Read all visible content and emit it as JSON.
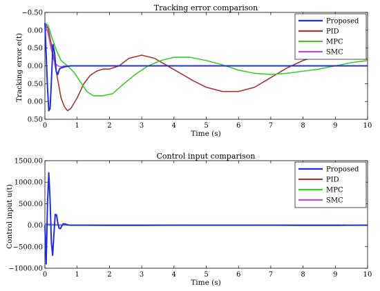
{
  "chart_data": [
    {
      "type": "line",
      "title": "Tracking error comparison",
      "xlabel": "Time (s)",
      "ylabel": "Tracking error e(t)",
      "xlim": [
        0,
        10
      ],
      "ylim": [
        -0.5,
        0.5
      ],
      "xticks": [
        "0",
        "1",
        "2",
        "3",
        "4",
        "5",
        "6",
        "7",
        "8",
        "9",
        "10"
      ],
      "yticks": [
        "−0.50",
        "0.00",
        "0.50",
        "0.00",
        "0.50",
        "0.00",
        "0.50"
      ],
      "legend_position": "top-right",
      "series": [
        {
          "name": "Proposed",
          "color": "#1f2fd8",
          "x": [
            0,
            0.04,
            0.08,
            0.12,
            0.16,
            0.2,
            0.25,
            0.3,
            0.35,
            0.4,
            0.45,
            0.5,
            0.6,
            0.8,
            1.2,
            2,
            4,
            6,
            8,
            10
          ],
          "y": [
            -0.4,
            -0.1,
            0.2,
            0.42,
            0.4,
            0.15,
            -0.2,
            -0.12,
            0.05,
            0.08,
            0.03,
            0.02,
            0.01,
            0.0,
            0.0,
            0.0,
            0.0,
            0.0,
            0.0,
            0.0
          ]
        },
        {
          "name": "PID",
          "color": "#a83232",
          "x": [
            0,
            0.1,
            0.2,
            0.35,
            0.5,
            0.6,
            0.7,
            0.8,
            1.0,
            1.2,
            1.4,
            1.6,
            1.8,
            2.0,
            2.3,
            2.6,
            3.0,
            3.4,
            3.8,
            4.2,
            4.6,
            5.0,
            5.5,
            6.0,
            6.5,
            7.0,
            7.5,
            8.0,
            8.5,
            9.0,
            9.5,
            10
          ],
          "y": [
            -0.4,
            -0.35,
            -0.2,
            0.05,
            0.3,
            0.38,
            0.42,
            0.4,
            0.3,
            0.17,
            0.09,
            0.05,
            0.03,
            0.03,
            0.0,
            -0.07,
            -0.1,
            -0.07,
            0.0,
            0.07,
            0.14,
            0.2,
            0.24,
            0.24,
            0.2,
            0.11,
            0.02,
            -0.05,
            -0.1,
            -0.12,
            -0.11,
            -0.06
          ]
        },
        {
          "name": "MPC",
          "color": "#3bcc2a",
          "x": [
            0,
            0.1,
            0.2,
            0.35,
            0.5,
            0.7,
            0.9,
            1.1,
            1.3,
            1.5,
            1.8,
            2.1,
            2.4,
            2.8,
            3.2,
            3.6,
            4.0,
            4.5,
            5.0,
            5.5,
            6.0,
            6.5,
            7.0,
            7.5,
            8.0,
            8.5,
            9.0,
            9.5,
            10
          ],
          "y": [
            -0.4,
            -0.38,
            -0.28,
            -0.15,
            -0.05,
            0.0,
            0.06,
            0.15,
            0.24,
            0.28,
            0.28,
            0.26,
            0.18,
            0.08,
            0.0,
            -0.05,
            -0.08,
            -0.08,
            -0.05,
            -0.01,
            0.04,
            0.07,
            0.08,
            0.07,
            0.05,
            0.03,
            0.0,
            -0.03,
            -0.05
          ]
        },
        {
          "name": "SMC",
          "color": "#b050e6",
          "x": [
            0,
            0.1,
            0.2,
            0.3,
            0.4,
            0.5,
            0.6,
            0.8,
            1.0,
            2,
            4,
            6,
            8,
            10
          ],
          "y": [
            -0.4,
            -0.3,
            -0.15,
            -0.03,
            0.0,
            0.01,
            0.0,
            0.0,
            0.0,
            0.0,
            0.0,
            0.0,
            0.0,
            0.0
          ]
        }
      ]
    },
    {
      "type": "line",
      "title": "Control input comparison",
      "xlabel": "Time (s)",
      "ylabel": "Control input u(t)",
      "xlim": [
        0,
        10
      ],
      "ylim": [
        -1000,
        1500
      ],
      "xticks": [
        "0",
        "1",
        "2",
        "3",
        "4",
        "5",
        "6",
        "7",
        "8",
        "9",
        "10"
      ],
      "yticks": [
        "1500.00",
        "1000.00",
        "500.00",
        "0.00",
        "−500.00",
        "−1000.00"
      ],
      "legend_position": "top-right",
      "series": [
        {
          "name": "Proposed",
          "color": "#1f2fd8",
          "x": [
            0,
            0.04,
            0.08,
            0.12,
            0.16,
            0.2,
            0.24,
            0.28,
            0.32,
            0.36,
            0.4,
            0.44,
            0.48,
            0.52,
            0.56,
            0.6,
            0.7,
            0.8,
            1.0,
            1.5,
            2,
            4,
            6,
            8,
            10
          ],
          "y": [
            0,
            -900,
            500,
            1220,
            600,
            -400,
            -700,
            -200,
            250,
            240,
            50,
            -70,
            -80,
            -20,
            30,
            35,
            10,
            0,
            0,
            0,
            0,
            0,
            0,
            0,
            0
          ]
        },
        {
          "name": "PID",
          "color": "#a83232",
          "x": [
            0,
            0.5,
            1,
            2,
            3,
            4,
            5,
            6,
            7,
            8,
            9,
            10
          ],
          "y": [
            5,
            5,
            0,
            -5,
            -5,
            0,
            5,
            5,
            0,
            -5,
            -5,
            0
          ]
        },
        {
          "name": "MPC",
          "color": "#3bcc2a",
          "x": [
            0,
            1,
            2,
            3,
            4,
            5,
            6,
            7,
            8,
            9,
            10
          ],
          "y": [
            0,
            0,
            0,
            0,
            0,
            0,
            0,
            0,
            0,
            0,
            0
          ]
        },
        {
          "name": "SMC",
          "color": "#b050e6",
          "x": [
            0,
            0.2,
            0.4,
            0.6,
            1,
            2,
            4,
            6,
            8,
            10
          ],
          "y": [
            30,
            20,
            10,
            5,
            0,
            0,
            0,
            0,
            0,
            0
          ]
        }
      ]
    }
  ]
}
